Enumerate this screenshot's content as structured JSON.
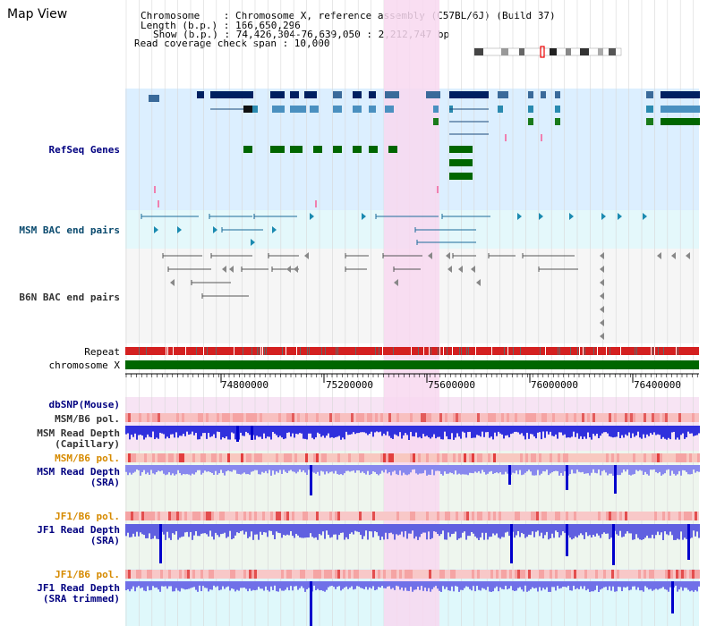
{
  "map_title": "Map View",
  "header": {
    "chromosome_line": "Chromosome    : Chromosome X, reference assembly (C57BL/6J) (Build 37)",
    "length_line": "Length (b.p.) : 166,650,296",
    "show_line": "Show (b.p.) : 74,426,304-76,639,050 : 2,212,747 bp",
    "span_line": "Read coverage check span : 10,000"
  },
  "tracks": {
    "refseq": "RefSeq Genes",
    "msm_bac": "MSM BAC end pairs",
    "b6n_bac": "B6N BAC end pairs",
    "repeat": "Repeat",
    "chromosome": "chromosome X",
    "dbsnp": "dbSNP(Mouse)",
    "msm_b6_pol_1": "MSM/B6 pol.",
    "msm_depth_cap_1": "MSM Read Depth",
    "msm_depth_cap_2": "(Capillary)",
    "msm_b6_pol_2": "MSM/B6 pol.",
    "msm_depth_sra_1": "MSM Read Depth",
    "msm_depth_sra_2": "(SRA)",
    "jf1_pol_1": "JF1/B6 pol.",
    "jf1_depth_sra_1": "JF1 Read Depth",
    "jf1_depth_sra_2": "(SRA)",
    "jf1_pol_2": "JF1/B6 pol.",
    "jf1_trim_1": "JF1 Read Depth",
    "jf1_trim_2": "(SRA trimmed)"
  },
  "axis_ticks": [
    "74800000",
    "75200000",
    "75600000",
    "76000000",
    "76400000"
  ],
  "colors": {
    "refseq_bg": "#dcefff",
    "msm_bac_bg": "#e4f8fb",
    "highlight": "#f8d8f0",
    "chromosome": "#006600",
    "repeat": "#d42020",
    "depth": "#5555ee"
  }
}
